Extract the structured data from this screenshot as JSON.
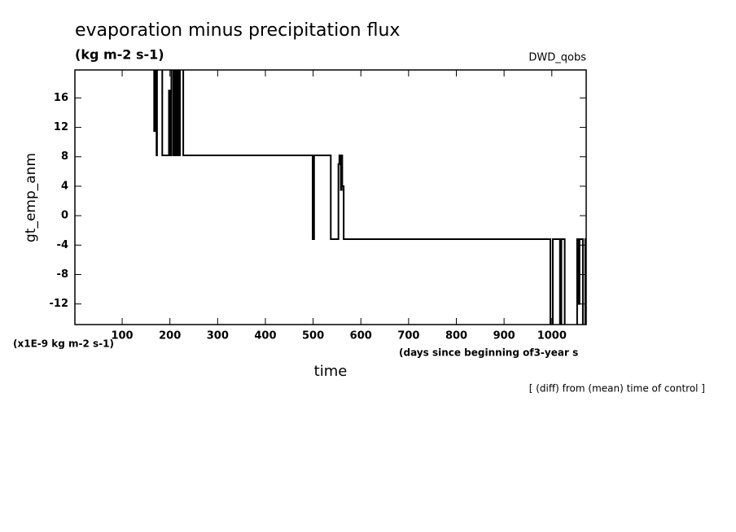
{
  "chart_data": {
    "type": "line",
    "title": "evaporation minus precipitation flux",
    "subtitle": "(kg m-2 s-1)",
    "dataset_label": "DWD_qobs",
    "y_label": "gt_emp_anm",
    "x_label": "time",
    "y_unit_note": "(x1E-9 kg m-2 s-1)",
    "x_unit_note": "(days since beginning of3-year s",
    "footnote": "[ (diff) from (mean) time of control ]",
    "xlim": [
      1,
      1072
    ],
    "ylim": [
      -14.8,
      19.8
    ],
    "xticks": [
      100,
      200,
      300,
      400,
      500,
      600,
      700,
      800,
      900,
      1000
    ],
    "yticks": [
      -12,
      -8,
      -4,
      0,
      4,
      8,
      12,
      16
    ],
    "series": [
      {
        "color": "#000000",
        "x": [
          167,
          167,
          169,
          169,
          172,
          172,
          173,
          173,
          184,
          184,
          198,
          198,
          200,
          200,
          203,
          203,
          207,
          207,
          210,
          210,
          213,
          213,
          216,
          216,
          218,
          218,
          221,
          221,
          228,
          228,
          499,
          499,
          500,
          500,
          501,
          501,
          502,
          502,
          537,
          537,
          553,
          553,
          555,
          555,
          558,
          558,
          560,
          560,
          561,
          561,
          564,
          564,
          997,
          997,
          1002,
          1002,
          1017,
          1017,
          1020,
          1020,
          1027,
          1027,
          1053,
          1053,
          1056,
          1056,
          1058,
          1058,
          1065,
          1065,
          1070,
          1070,
          1072
        ],
        "values": [
          20,
          11.5,
          11.5,
          20,
          20,
          8.2,
          8.2,
          20,
          20,
          8.2,
          8.2,
          17,
          17,
          8.2,
          8.2,
          20,
          20,
          8.2,
          8.2,
          20,
          20,
          8.2,
          8.2,
          20,
          20,
          8.2,
          8.2,
          20,
          20,
          8.2,
          8.2,
          -3.2,
          -3.2,
          8.2,
          8.2,
          -3.2,
          -3.2,
          8.2,
          8.2,
          -3.2,
          -3.2,
          7,
          7,
          8.2,
          8.2,
          3.5,
          3.5,
          8.2,
          8.2,
          4,
          4,
          -3.2,
          -3.2,
          -15,
          -15,
          -3.2,
          -3.2,
          -15,
          -15,
          -3.2,
          -3.2,
          -15,
          -15,
          -3.2,
          -3.2,
          -12,
          -12,
          -3.2,
          -3.2,
          -15,
          -15,
          -3.2,
          -3.2
        ]
      }
    ]
  }
}
